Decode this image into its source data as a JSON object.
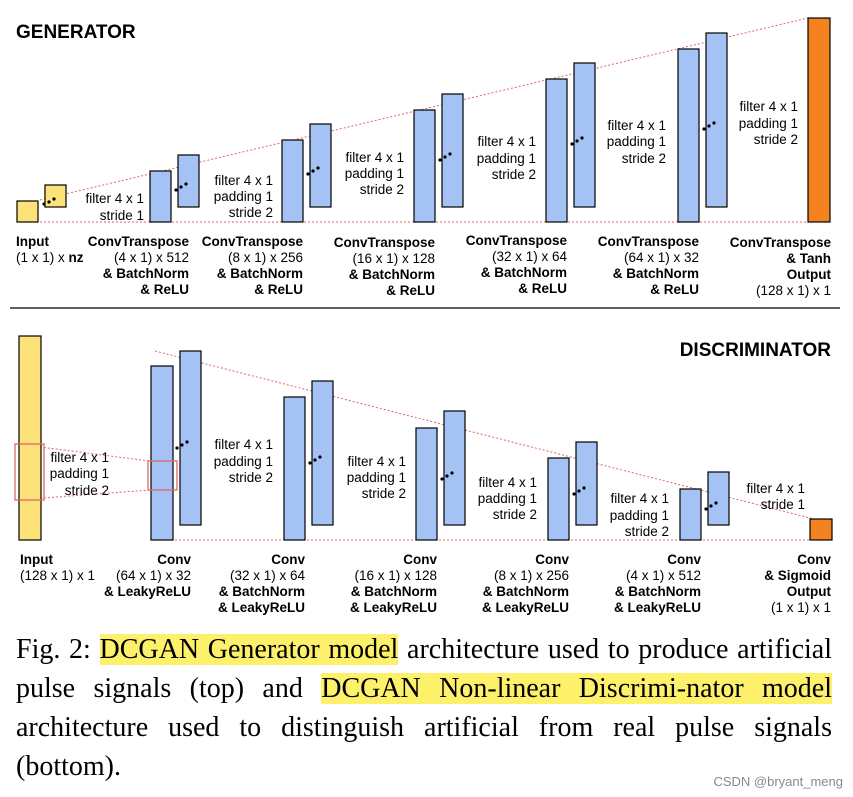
{
  "generator": {
    "title": "GENERATOR",
    "layers": [
      {
        "lines": [
          {
            "t": "Input",
            "b": true
          },
          {
            "t": "(1 x 1) x ",
            "b": false,
            "suffix": "nz"
          }
        ]
      },
      {
        "lines": [
          {
            "t": "ConvTranspose",
            "b": true
          },
          {
            "t": "(4 x 1) x 512",
            "b": false
          },
          {
            "t": "& BatchNorm",
            "b": true
          },
          {
            "t": "& ReLU",
            "b": true
          }
        ]
      },
      {
        "lines": [
          {
            "t": "ConvTranspose",
            "b": true
          },
          {
            "t": "(8 x 1) x 256",
            "b": false
          },
          {
            "t": "& BatchNorm",
            "b": true
          },
          {
            "t": "& ReLU",
            "b": true
          }
        ]
      },
      {
        "lines": [
          {
            "t": "ConvTranspose",
            "b": true
          },
          {
            "t": "(16 x 1) x 128",
            "b": false
          },
          {
            "t": "& BatchNorm",
            "b": true
          },
          {
            "t": "& ReLU",
            "b": true
          }
        ]
      },
      {
        "lines": [
          {
            "t": "ConvTranspose",
            "b": true
          },
          {
            "t": "(32 x 1) x 64",
            "b": false
          },
          {
            "t": "& BatchNorm",
            "b": true
          },
          {
            "t": "& ReLU",
            "b": true
          }
        ]
      },
      {
        "lines": [
          {
            "t": "ConvTranspose",
            "b": true
          },
          {
            "t": "(64 x 1) x 32",
            "b": false
          },
          {
            "t": "& BatchNorm",
            "b": true
          },
          {
            "t": "& ReLU",
            "b": true
          }
        ]
      },
      {
        "lines": [
          {
            "t": "ConvTranspose",
            "b": true
          },
          {
            "t": "& Tanh",
            "b": true
          },
          {
            "t": "Output",
            "b": true
          },
          {
            "t": "(128 x 1) x 1",
            "b": false
          }
        ]
      }
    ],
    "params": [
      [
        "filter 4 x 1",
        "stride 1"
      ],
      [
        "filter 4 x 1",
        "padding 1",
        "stride 2"
      ],
      [
        "filter 4 x 1",
        "padding 1",
        "stride 2"
      ],
      [
        "filter 4 x 1",
        "padding 1",
        "stride 2"
      ],
      [
        "filter 4 x 1",
        "padding 1",
        "stride 2"
      ],
      [
        "filter 4 x 1",
        "padding 1",
        "stride 2"
      ]
    ]
  },
  "discriminator": {
    "title": "DISCRIMINATOR",
    "layers": [
      {
        "lines": [
          {
            "t": "Input",
            "b": true
          },
          {
            "t": "(128 x 1) x 1",
            "b": false
          }
        ]
      },
      {
        "lines": [
          {
            "t": "Conv",
            "b": true
          },
          {
            "t": "(64 x 1) x 32",
            "b": false
          },
          {
            "t": "& LeakyReLU",
            "b": true
          }
        ]
      },
      {
        "lines": [
          {
            "t": "Conv",
            "b": true
          },
          {
            "t": "(32 x 1) x 64",
            "b": false
          },
          {
            "t": "& BatchNorm",
            "b": true
          },
          {
            "t": "& LeakyReLU",
            "b": true
          }
        ]
      },
      {
        "lines": [
          {
            "t": "Conv",
            "b": true
          },
          {
            "t": "(16 x 1) x 128",
            "b": false
          },
          {
            "t": "& BatchNorm",
            "b": true
          },
          {
            "t": "& LeakyReLU",
            "b": true
          }
        ]
      },
      {
        "lines": [
          {
            "t": "Conv",
            "b": true
          },
          {
            "t": "(8 x 1) x 256",
            "b": false
          },
          {
            "t": "& BatchNorm",
            "b": true
          },
          {
            "t": "& LeakyReLU",
            "b": true
          }
        ]
      },
      {
        "lines": [
          {
            "t": "Conv",
            "b": true
          },
          {
            "t": "(4 x 1) x 512",
            "b": false
          },
          {
            "t": "& BatchNorm",
            "b": true
          },
          {
            "t": "& LeakyReLU",
            "b": true
          }
        ]
      },
      {
        "lines": [
          {
            "t": "Conv",
            "b": true
          },
          {
            "t": "& Sigmoid",
            "b": true
          },
          {
            "t": "Output",
            "b": true
          },
          {
            "t": "(1 x 1) x 1",
            "b": false
          }
        ]
      }
    ],
    "params": [
      [
        "filter 4 x 1",
        "padding 1",
        "stride 2"
      ],
      [
        "filter 4 x 1",
        "padding 1",
        "stride 2"
      ],
      [
        "filter 4 x 1",
        "padding 1",
        "stride 2"
      ],
      [
        "filter 4 x 1",
        "padding 1",
        "stride 2"
      ],
      [
        "filter 4 x 1",
        "padding 1",
        "stride 2"
      ],
      [
        "filter 4 x 1",
        "stride 1"
      ]
    ]
  },
  "caption": {
    "prefix": "Fig. 2: ",
    "hl1": "DCGAN Generator model",
    "mid1": " architecture used to produce artificial pulse signals (top) and ",
    "hl2": "DCGAN Non-linear Discrimi-nator model",
    "mid2": " architecture used to distinguish artificial from real pulse signals (bottom)."
  },
  "watermark": "CSDN @bryant_meng",
  "colors": {
    "input": "#fde27a",
    "layer": "#a4c2f4",
    "output": "#f58220",
    "guide": "#e06666",
    "highlight": "#fdf06b"
  }
}
